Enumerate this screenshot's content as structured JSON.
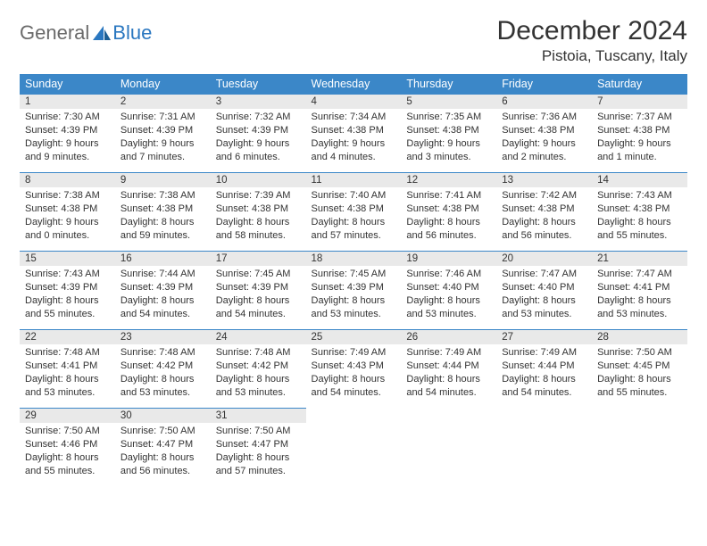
{
  "logo": {
    "text1": "General",
    "text2": "Blue"
  },
  "title": "December 2024",
  "location": "Pistoia, Tuscany, Italy",
  "colors": {
    "header_bg": "#3b87c8",
    "header_fg": "#ffffff",
    "daynum_bg": "#e9e9e9",
    "daynum_border": "#3b87c8",
    "text": "#333333",
    "logo_gray": "#6a6a6a",
    "logo_blue": "#2a77c0",
    "page_bg": "#ffffff"
  },
  "weekdays": [
    "Sunday",
    "Monday",
    "Tuesday",
    "Wednesday",
    "Thursday",
    "Friday",
    "Saturday"
  ],
  "weeks": [
    [
      {
        "n": "1",
        "sr": "7:30 AM",
        "ss": "4:39 PM",
        "dh": "9",
        "dm": "9"
      },
      {
        "n": "2",
        "sr": "7:31 AM",
        "ss": "4:39 PM",
        "dh": "9",
        "dm": "7"
      },
      {
        "n": "3",
        "sr": "7:32 AM",
        "ss": "4:39 PM",
        "dh": "9",
        "dm": "6"
      },
      {
        "n": "4",
        "sr": "7:34 AM",
        "ss": "4:38 PM",
        "dh": "9",
        "dm": "4"
      },
      {
        "n": "5",
        "sr": "7:35 AM",
        "ss": "4:38 PM",
        "dh": "9",
        "dm": "3"
      },
      {
        "n": "6",
        "sr": "7:36 AM",
        "ss": "4:38 PM",
        "dh": "9",
        "dm": "2"
      },
      {
        "n": "7",
        "sr": "7:37 AM",
        "ss": "4:38 PM",
        "dh": "9",
        "dm": "1"
      }
    ],
    [
      {
        "n": "8",
        "sr": "7:38 AM",
        "ss": "4:38 PM",
        "dh": "9",
        "dm": "0"
      },
      {
        "n": "9",
        "sr": "7:38 AM",
        "ss": "4:38 PM",
        "dh": "8",
        "dm": "59"
      },
      {
        "n": "10",
        "sr": "7:39 AM",
        "ss": "4:38 PM",
        "dh": "8",
        "dm": "58"
      },
      {
        "n": "11",
        "sr": "7:40 AM",
        "ss": "4:38 PM",
        "dh": "8",
        "dm": "57"
      },
      {
        "n": "12",
        "sr": "7:41 AM",
        "ss": "4:38 PM",
        "dh": "8",
        "dm": "56"
      },
      {
        "n": "13",
        "sr": "7:42 AM",
        "ss": "4:38 PM",
        "dh": "8",
        "dm": "56"
      },
      {
        "n": "14",
        "sr": "7:43 AM",
        "ss": "4:38 PM",
        "dh": "8",
        "dm": "55"
      }
    ],
    [
      {
        "n": "15",
        "sr": "7:43 AM",
        "ss": "4:39 PM",
        "dh": "8",
        "dm": "55"
      },
      {
        "n": "16",
        "sr": "7:44 AM",
        "ss": "4:39 PM",
        "dh": "8",
        "dm": "54"
      },
      {
        "n": "17",
        "sr": "7:45 AM",
        "ss": "4:39 PM",
        "dh": "8",
        "dm": "54"
      },
      {
        "n": "18",
        "sr": "7:45 AM",
        "ss": "4:39 PM",
        "dh": "8",
        "dm": "53"
      },
      {
        "n": "19",
        "sr": "7:46 AM",
        "ss": "4:40 PM",
        "dh": "8",
        "dm": "53"
      },
      {
        "n": "20",
        "sr": "7:47 AM",
        "ss": "4:40 PM",
        "dh": "8",
        "dm": "53"
      },
      {
        "n": "21",
        "sr": "7:47 AM",
        "ss": "4:41 PM",
        "dh": "8",
        "dm": "53"
      }
    ],
    [
      {
        "n": "22",
        "sr": "7:48 AM",
        "ss": "4:41 PM",
        "dh": "8",
        "dm": "53"
      },
      {
        "n": "23",
        "sr": "7:48 AM",
        "ss": "4:42 PM",
        "dh": "8",
        "dm": "53"
      },
      {
        "n": "24",
        "sr": "7:48 AM",
        "ss": "4:42 PM",
        "dh": "8",
        "dm": "53"
      },
      {
        "n": "25",
        "sr": "7:49 AM",
        "ss": "4:43 PM",
        "dh": "8",
        "dm": "54"
      },
      {
        "n": "26",
        "sr": "7:49 AM",
        "ss": "4:44 PM",
        "dh": "8",
        "dm": "54"
      },
      {
        "n": "27",
        "sr": "7:49 AM",
        "ss": "4:44 PM",
        "dh": "8",
        "dm": "54"
      },
      {
        "n": "28",
        "sr": "7:50 AM",
        "ss": "4:45 PM",
        "dh": "8",
        "dm": "55"
      }
    ],
    [
      {
        "n": "29",
        "sr": "7:50 AM",
        "ss": "4:46 PM",
        "dh": "8",
        "dm": "55"
      },
      {
        "n": "30",
        "sr": "7:50 AM",
        "ss": "4:47 PM",
        "dh": "8",
        "dm": "56"
      },
      {
        "n": "31",
        "sr": "7:50 AM",
        "ss": "4:47 PM",
        "dh": "8",
        "dm": "57"
      },
      null,
      null,
      null,
      null
    ]
  ],
  "labels": {
    "sunrise": "Sunrise:",
    "sunset": "Sunset:",
    "daylight": "Daylight:",
    "hours": "hours",
    "and": "and",
    "minute": "minute",
    "minutes": "minutes"
  }
}
